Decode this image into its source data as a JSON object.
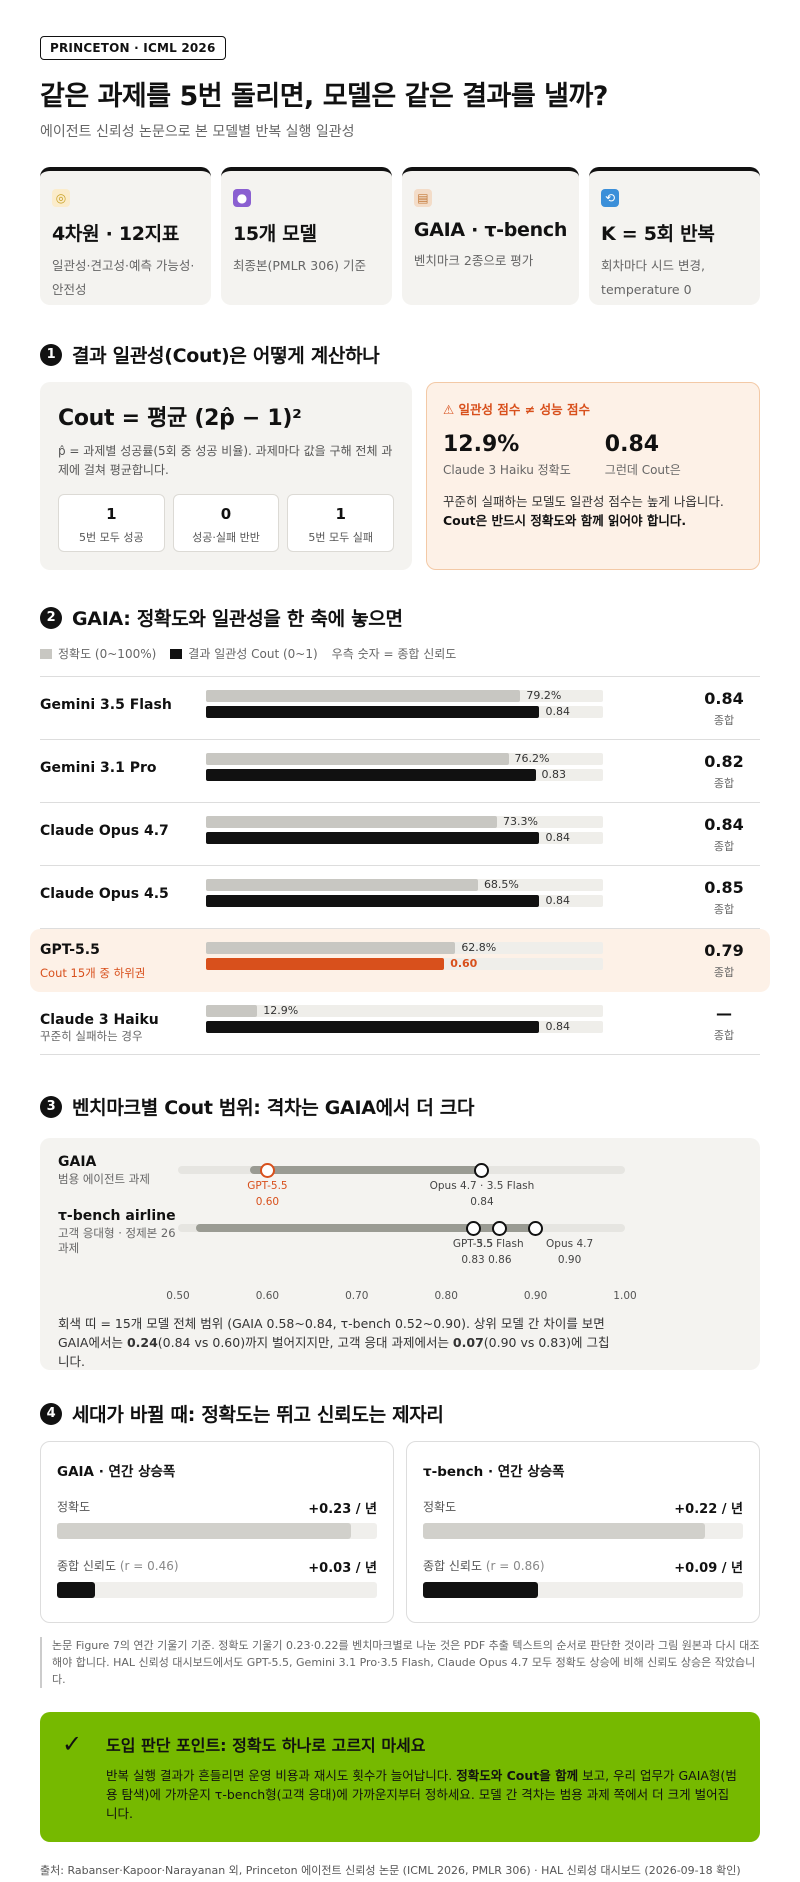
{
  "header": {
    "badge": "PRINCETON · ICML 2026",
    "title": "같은 과제를 5번 돌리면, 모델은 같은 결과를 낼까?",
    "subtitle": "에이전트 신뢰성 논문으로 본 모델별 반복 실행 일관성"
  },
  "stats": [
    {
      "icon": "target-icon",
      "icon_color": "#c9a227",
      "title": "4차원 · 12지표",
      "desc": "일관성·견고성·예측 가능성·안전성"
    },
    {
      "icon": "robot-icon",
      "icon_color": "#8a5fd1",
      "title": "15개 모델",
      "desc": "최종본(PMLR 306) 기준"
    },
    {
      "icon": "clipboard-icon",
      "icon_color": "#c47a3a",
      "title": "GAIA · τ-bench",
      "desc": "벤치마크 2종으로 평가"
    },
    {
      "icon": "repeat-icon",
      "icon_color": "#3b8fd9",
      "title": "K = 5회 반복",
      "desc": "회차마다 시드 변경, temperature 0"
    }
  ],
  "section1": {
    "num": "1",
    "title": "결과 일관성(Cout)은 어떻게 계산하나",
    "formula": "Cout = 평균 (2p̂ − 1)²",
    "formula_note": "p̂ = 과제별 성공률(5회 중 성공 비율). 과제마다 값을 구해 전체 과제에 걸쳐 평균합니다.",
    "minis": [
      {
        "value": "1",
        "label": "5번 모두 성공"
      },
      {
        "value": "0",
        "label": "성공·실패 반반"
      },
      {
        "value": "1",
        "label": "5번 모두 실패"
      }
    ],
    "warn": {
      "title": "⚠ 일관성 점수 ≠ 성능 점수",
      "stat1_value": "12.9%",
      "stat1_label": "Claude 3 Haiku 정확도",
      "stat2_value": "0.84",
      "stat2_label": "그런데 Cout은",
      "text_plain": "꾸준히 실패하는 모델도 일관성 점수는 높게 나옵니다. ",
      "text_bold": "Cout은 반드시 정확도와 함께 읽어야 합니다."
    }
  },
  "section2": {
    "num": "2",
    "title": "GAIA: 정확도와 일관성을 한 축에 놓으면",
    "legend": {
      "acc": "정확도 (0~100%)",
      "cout": "결과 일관성 Cout (0~1)",
      "note": "우측 숫자 = 종합 신뢰도"
    },
    "score_label": "종합"
  },
  "chart_data": {
    "type": "bar",
    "title": "GAIA: 정확도와 일관성을 한 축에 놓으면",
    "categories": [
      "Gemini 3.5 Flash",
      "Gemini 3.1 Pro",
      "Claude Opus 4.7",
      "Claude Opus 4.5",
      "GPT-5.5",
      "Claude 3 Haiku"
    ],
    "subtitles": [
      "",
      "",
      "",
      "",
      "Cout 15개 중 하위권",
      "꾸준히 실패하는 경우"
    ],
    "series": [
      {
        "name": "정확도 (0~100%)",
        "values": [
          79.2,
          76.2,
          73.3,
          68.5,
          62.8,
          12.9
        ],
        "labels": [
          "79.2%",
          "76.2%",
          "73.3%",
          "68.5%",
          "62.8%",
          "12.9%"
        ],
        "max": 100
      },
      {
        "name": "결과 일관성 Cout (0~1)",
        "values": [
          0.84,
          0.83,
          0.84,
          0.84,
          0.6,
          0.84
        ],
        "labels": [
          "0.84",
          "0.83",
          "0.84",
          "0.84",
          "0.60",
          "0.84"
        ],
        "max": 1
      }
    ],
    "reliability": [
      "0.84",
      "0.82",
      "0.84",
      "0.85",
      "0.79",
      "—"
    ],
    "highlight_index": 4,
    "colors": {
      "acc": "#c8c7c2",
      "cout": "#111111",
      "warn": "#d8501c",
      "highlight_bg": "#fdf1e7"
    }
  },
  "section3": {
    "num": "3",
    "title": "벤치마크별 Cout 범위: 격차는 GAIA에서 더 크다",
    "axis": {
      "min": 0.5,
      "max": 1.0,
      "ticks": [
        "0.50",
        "0.60",
        "0.70",
        "0.80",
        "0.90",
        "1.00"
      ]
    },
    "benchmarks": [
      {
        "name": "GAIA",
        "sub": "범용 에이전트 과제",
        "range": [
          0.58,
          0.84
        ],
        "points": [
          {
            "value": 0.6,
            "label": "GPT-5.5",
            "value_label": "0.60",
            "warn": true
          },
          {
            "value": 0.84,
            "label": "Opus 4.7 · 3.5 Flash",
            "value_label": "0.84",
            "warn": false
          }
        ]
      },
      {
        "name": "τ-bench airline",
        "sub": "고객 응대형 · 정제본 26과제",
        "range": [
          0.52,
          0.9
        ],
        "points": [
          {
            "value": 0.83,
            "label": "GPT-5.5",
            "value_label": "0.83",
            "warn": false
          },
          {
            "value": 0.86,
            "label": "3.5 Flash",
            "value_label": "0.86",
            "warn": false
          },
          {
            "value": 0.9,
            "label": "Opus 4.7",
            "value_label": "0.90",
            "warn": false
          }
        ]
      }
    ],
    "note_1": "회색 띠 = 15개 모델 전체 범위 (GAIA 0.58~0.84, τ-bench 0.52~0.90). 상위 모델 간 차이를 보면 GAIA에서는 ",
    "note_b1": "0.24",
    "note_2": "(0.84 vs 0.60)까지 벌어지지만, 고객 응대 과제에서는 ",
    "note_b2": "0.07",
    "note_3": "(0.90 vs 0.83)에 그칩니다."
  },
  "section4": {
    "num": "4",
    "title": "세대가 바뀔 때: 정확도는 뛰고 신뢰도는 제자리",
    "cards": [
      {
        "title": "GAIA · 연간 상승폭",
        "acc_label": "정확도",
        "acc_value": "+0.23 / 년",
        "acc_fill": 0.92,
        "rel_label": "종합 신뢰도",
        "rel_r": "(r = 0.46)",
        "rel_value": "+0.03 / 년",
        "rel_fill": 0.12
      },
      {
        "title": "τ-bench · 연간 상승폭",
        "acc_label": "정확도",
        "acc_value": "+0.22 / 년",
        "acc_fill": 0.88,
        "rel_label": "종합 신뢰도",
        "rel_r": "(r = 0.86)",
        "rel_value": "+0.09 / 년",
        "rel_fill": 0.36
      }
    ],
    "note": "논문 Figure 7의 연간 기울기 기준. 정확도 기울기 0.23·0.22를 벤치마크별로 나눈 것은 PDF 추출 텍스트의 순서로 판단한 것이라 그림 원본과 다시 대조해야 합니다. HAL 신뢰성 대시보드에서도 GPT-5.5, Gemini 3.1 Pro·3.5 Flash, Claude Opus 4.7 모두 정확도 상승에 비해 신뢰도 상승은 작았습니다."
  },
  "callout": {
    "title": "도입 판단 포인트: 정확도 하나로 고르지 마세요",
    "text_1": "반복 실행 결과가 흔들리면 운영 비용과 재시도 횟수가 늘어납니다. ",
    "text_b": "정확도와 Cout을 함께",
    "text_2": " 보고, 우리 업무가 GAIA형(범용 탐색)에 가까운지 τ-bench형(고객 응대)에 가까운지부터 정하세요. 모델 간 격차는 범용 과제 쪽에서 더 크게 벌어집니다.",
    "color": "#76b900"
  },
  "source": "출처: Rabanser·Kapoor·Narayanan 외, Princeton 에이전트 신뢰성 논문 (ICML 2026, PMLR 306) · HAL 신뢰성 대시보드 (2026-09-18 확인)"
}
